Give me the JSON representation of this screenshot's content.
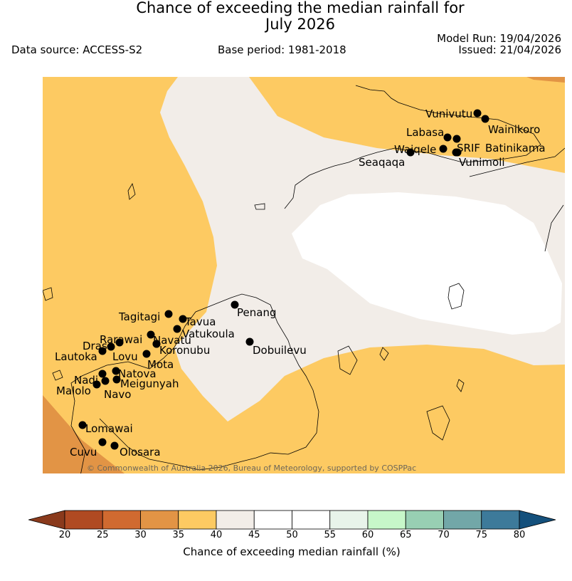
{
  "title": {
    "line1": "Chance of exceeding the median rainfall for",
    "line2": "July 2026"
  },
  "header": {
    "data_source": "Data source: ACCESS-S2",
    "base_period": "Base period: 1981-2018",
    "model_run": "Model Run: 19/04/2026",
    "issued": "Issued: 21/04/2026"
  },
  "map": {
    "copyright": "© Commonwealth of Australia 2026, Bureau of Meteorology, supported by COSPPac",
    "stations": [
      "Vunivutu",
      "Wainikoro",
      "Labasa",
      "Waiqele",
      "SRIF",
      "Batinikama",
      "Seaqaqa",
      "Vunimoli",
      "Tagitagi",
      "Tavua",
      "Penang",
      "Vatukoula",
      "Rarawai",
      "Navatu",
      "Drasa",
      "Koronubu",
      "Lautoka",
      "Lovu",
      "Mota",
      "Dobuilevu",
      "Nadi",
      "Natova",
      "Meigunyah",
      "Malolo",
      "Navo",
      "Lomawai",
      "Cuvu",
      "Olosara"
    ]
  },
  "colorbar": {
    "label": "Chance of exceeding median rainfall (%)",
    "ticks": [
      "20",
      "25",
      "30",
      "35",
      "40",
      "45",
      "50",
      "55",
      "60",
      "65",
      "70",
      "75",
      "80"
    ],
    "colors": [
      "#8a3a1c",
      "#b04a22",
      "#d06a30",
      "#e29445",
      "#fdca62",
      "#f2ede8",
      "#ffffff",
      "#ffffff",
      "#e8f4ea",
      "#c7f7c9",
      "#98cfb3",
      "#72a7a8",
      "#3d7a9a",
      "#14507c"
    ]
  }
}
